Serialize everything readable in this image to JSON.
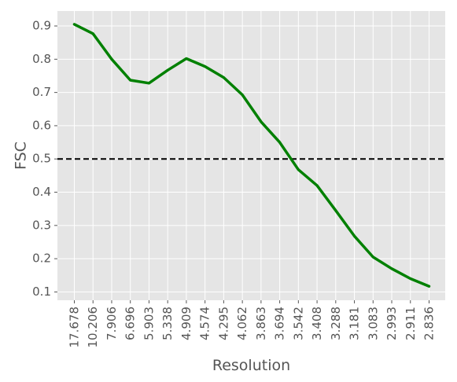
{
  "chart_data": {
    "type": "line",
    "xlabel": "Resolution",
    "ylabel": "FSC",
    "categories": [
      "17.678",
      "10.206",
      "7.906",
      "6.696",
      "5.903",
      "5.338",
      "4.909",
      "4.574",
      "4.295",
      "4.062",
      "3.863",
      "3.694",
      "3.542",
      "3.408",
      "3.288",
      "3.181",
      "3.083",
      "2.993",
      "2.911",
      "2.836"
    ],
    "series": [
      {
        "values": [
          0.905,
          0.877,
          0.8,
          0.737,
          0.728,
          0.767,
          0.802,
          0.778,
          0.745,
          0.693,
          0.612,
          0.55,
          0.468,
          0.42,
          0.345,
          0.268,
          0.205,
          0.17,
          0.14,
          0.117
        ],
        "color": "#008000"
      }
    ],
    "threshold": {
      "value": 0.5,
      "style": "dashed",
      "color": "#000000"
    },
    "ylim": [
      0.075,
      0.945
    ],
    "yticks": [
      0.1,
      0.2,
      0.3,
      0.4,
      0.5,
      0.6,
      0.7,
      0.8,
      0.9
    ],
    "ytick_labels": [
      "0.1",
      "0.2",
      "0.3",
      "0.4",
      "0.5",
      "0.6",
      "0.7",
      "0.8",
      "0.9"
    ],
    "grid": true,
    "background": "#E5E5E5",
    "gridline_color": "#FFFFFF"
  }
}
